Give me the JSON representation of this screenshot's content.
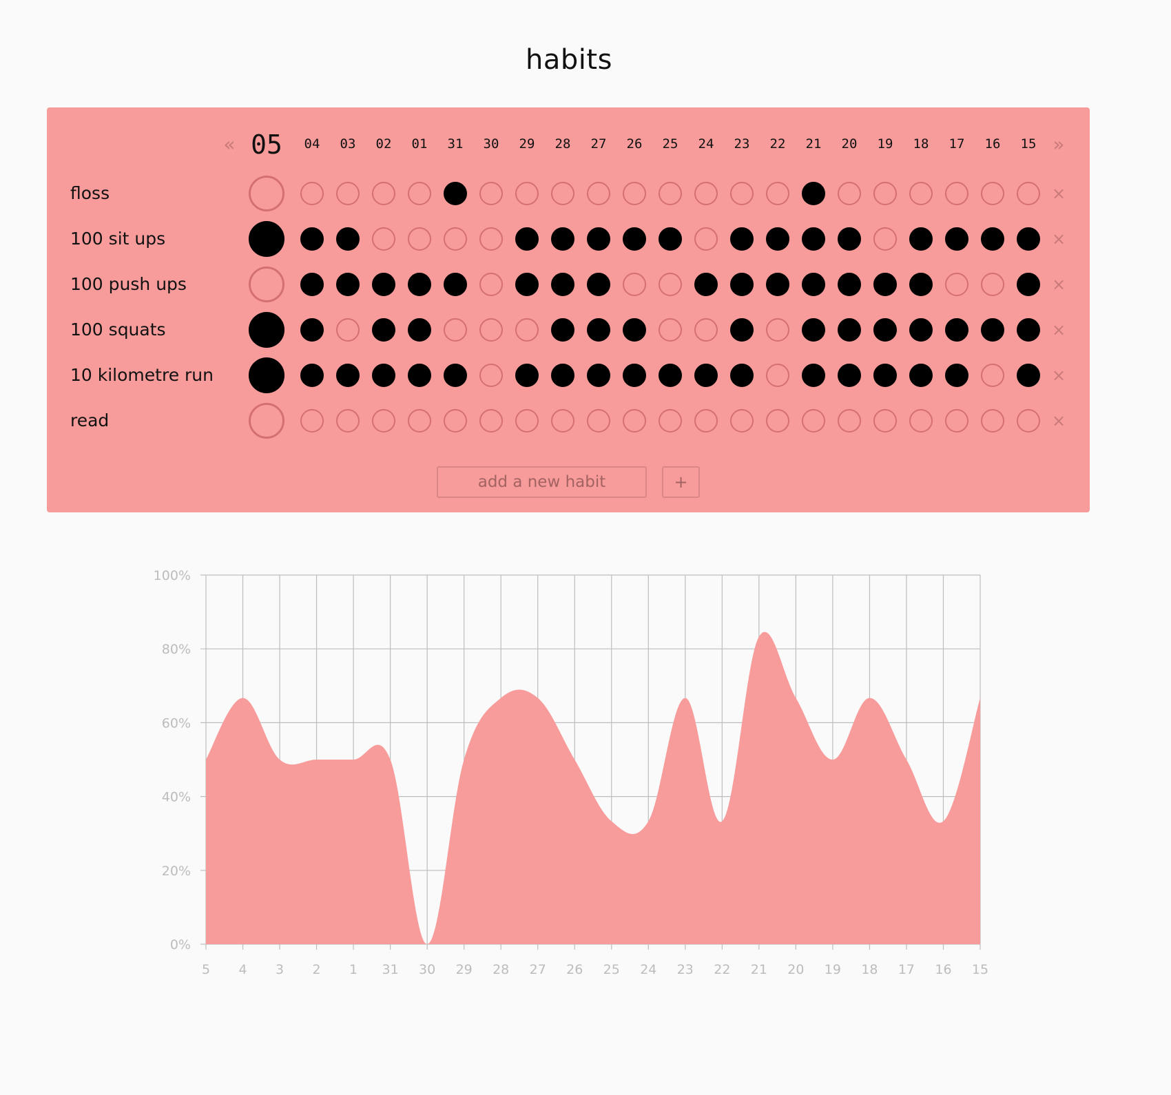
{
  "app": {
    "title": "habits"
  },
  "tracker": {
    "nav": {
      "prev_label": "«",
      "next_label": "»"
    },
    "days": [
      "05",
      "04",
      "03",
      "02",
      "01",
      "31",
      "30",
      "29",
      "28",
      "27",
      "26",
      "25",
      "24",
      "23",
      "22",
      "21",
      "20",
      "19",
      "18",
      "17",
      "16",
      "15"
    ],
    "habits": [
      {
        "name": "floss",
        "done": [
          0,
          0,
          0,
          0,
          0,
          1,
          0,
          0,
          0,
          0,
          0,
          0,
          0,
          0,
          0,
          1,
          0,
          0,
          0,
          0,
          0,
          0
        ]
      },
      {
        "name": "100 sit ups",
        "done": [
          1,
          1,
          1,
          0,
          0,
          0,
          0,
          1,
          1,
          1,
          1,
          1,
          0,
          1,
          1,
          1,
          1,
          0,
          1,
          1,
          1,
          1
        ]
      },
      {
        "name": "100 push ups",
        "done": [
          0,
          1,
          1,
          1,
          1,
          1,
          0,
          1,
          1,
          1,
          0,
          0,
          1,
          1,
          1,
          1,
          1,
          1,
          1,
          0,
          0,
          1
        ]
      },
      {
        "name": "100 squats",
        "done": [
          1,
          1,
          0,
          1,
          1,
          0,
          0,
          0,
          1,
          1,
          1,
          0,
          0,
          1,
          0,
          1,
          1,
          1,
          1,
          1,
          1,
          1
        ]
      },
      {
        "name": "10 kilometre run",
        "done": [
          1,
          1,
          1,
          1,
          1,
          1,
          0,
          1,
          1,
          1,
          1,
          1,
          1,
          1,
          0,
          1,
          1,
          1,
          1,
          1,
          0,
          1
        ]
      },
      {
        "name": "read",
        "done": [
          0,
          0,
          0,
          0,
          0,
          0,
          0,
          0,
          0,
          0,
          0,
          0,
          0,
          0,
          0,
          0,
          0,
          0,
          0,
          0,
          0,
          0
        ]
      }
    ],
    "remove_label": "×",
    "new_habit": {
      "placeholder": "add a new habit",
      "add_label": "+"
    }
  },
  "colors": {
    "panel": "#f79c9b",
    "area": "#f79c9b",
    "done": "#000000",
    "empty_ring": "#d4706f"
  },
  "chart_data": {
    "type": "area",
    "categories": [
      "5",
      "4",
      "3",
      "2",
      "1",
      "31",
      "30",
      "29",
      "28",
      "27",
      "26",
      "25",
      "24",
      "23",
      "22",
      "21",
      "20",
      "19",
      "18",
      "17",
      "16",
      "15"
    ],
    "values": [
      50,
      66.7,
      50,
      50,
      50,
      50,
      0,
      50,
      66.7,
      66.7,
      50,
      33.3,
      33.3,
      66.7,
      33.3,
      83.3,
      66.7,
      50,
      66.7,
      50,
      33.3,
      66.7
    ],
    "ylim": [
      0,
      100
    ],
    "yticks": [
      "0%",
      "20%",
      "40%",
      "60%",
      "80%",
      "100%"
    ],
    "grid": true,
    "smooth": true
  }
}
